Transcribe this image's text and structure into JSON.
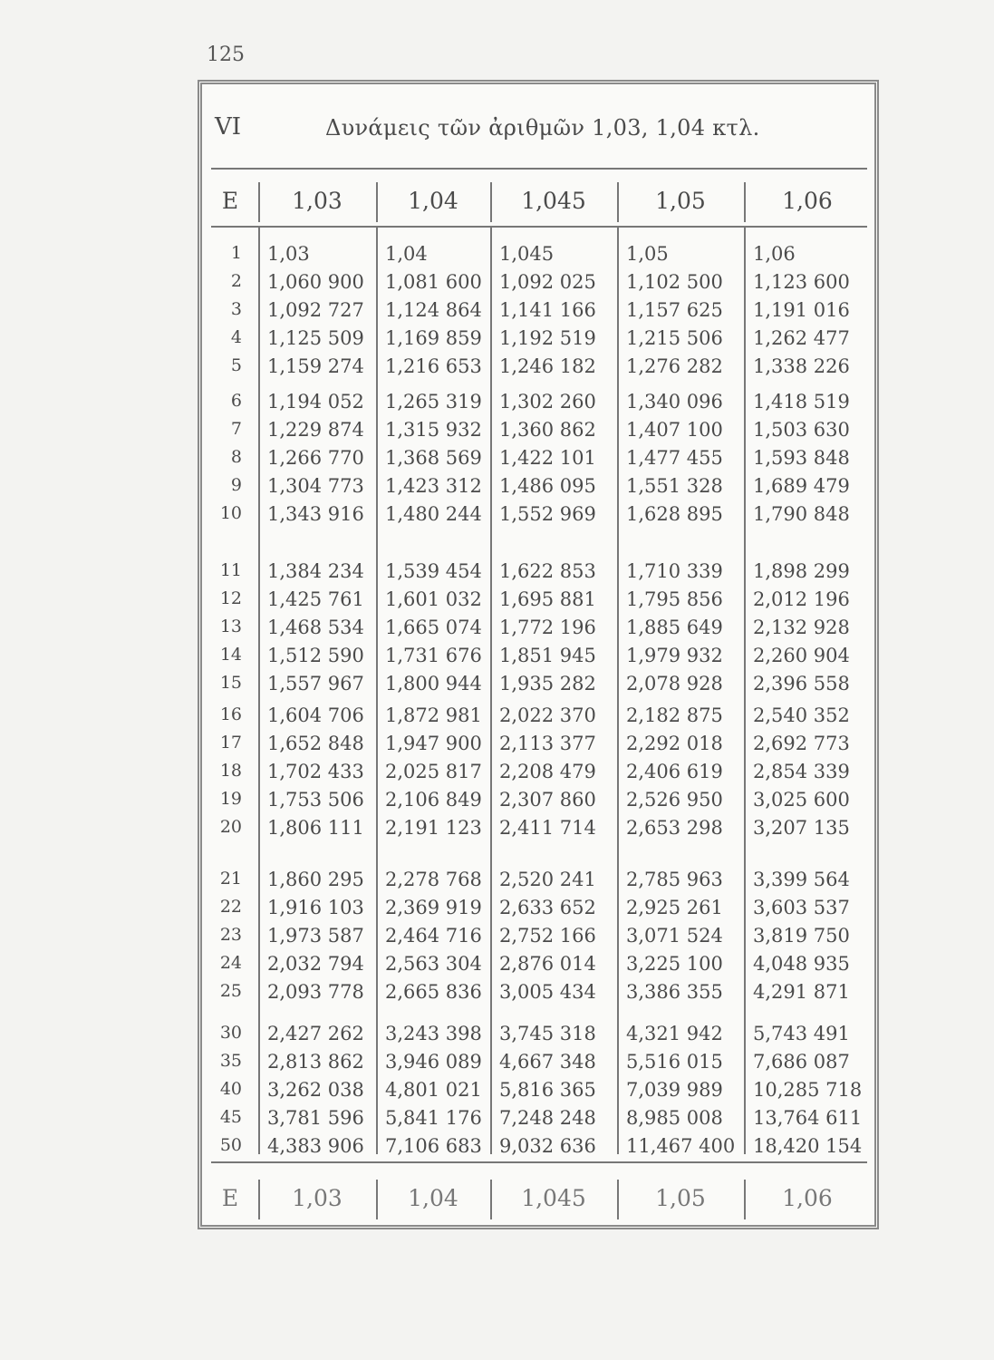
{
  "page_number": "125",
  "table": {
    "number": "VI",
    "title": "Δυνάμεις τῶν ἀριθμῶν 1,03, 1,04 κτλ.",
    "headers": [
      "E",
      "1,03",
      "1,04",
      "1,045",
      "1,05",
      "1,06"
    ],
    "footer": [
      "E",
      "1,03",
      "1,04",
      "1,045",
      "1,05",
      "1,06"
    ],
    "rows": [
      [
        "1",
        "1,03",
        "1,04",
        "1,045",
        "1,05",
        "1,06"
      ],
      [
        "2",
        "1,060 900",
        "1,081 600",
        "1,092 025",
        "1,102 500",
        "1,123 600"
      ],
      [
        "3",
        "1,092 727",
        "1,124 864",
        "1,141 166",
        "1,157 625",
        "1,191 016"
      ],
      [
        "4",
        "1,125 509",
        "1,169 859",
        "1,192 519",
        "1,215 506",
        "1,262 477"
      ],
      [
        "5",
        "1,159 274",
        "1,216 653",
        "1,246 182",
        "1,276 282",
        "1,338 226"
      ],
      [
        "6",
        "1,194 052",
        "1,265 319",
        "1,302 260",
        "1,340 096",
        "1,418 519"
      ],
      [
        "7",
        "1,229 874",
        "1,315 932",
        "1,360 862",
        "1,407 100",
        "1,503 630"
      ],
      [
        "8",
        "1,266 770",
        "1,368 569",
        "1,422 101",
        "1,477 455",
        "1,593 848"
      ],
      [
        "9",
        "1,304 773",
        "1,423 312",
        "1,486 095",
        "1,551 328",
        "1,689 479"
      ],
      [
        "10",
        "1,343 916",
        "1,480 244",
        "1,552 969",
        "1,628 895",
        "1,790 848"
      ],
      [
        "11",
        "1,384 234",
        "1,539 454",
        "1,622 853",
        "1,710 339",
        "1,898 299"
      ],
      [
        "12",
        "1,425 761",
        "1,601 032",
        "1,695 881",
        "1,795 856",
        "2,012 196"
      ],
      [
        "13",
        "1,468 534",
        "1,665 074",
        "1,772 196",
        "1,885 649",
        "2,132 928"
      ],
      [
        "14",
        "1,512 590",
        "1,731 676",
        "1,851 945",
        "1,979 932",
        "2,260 904"
      ],
      [
        "15",
        "1,557 967",
        "1,800 944",
        "1,935 282",
        "2,078 928",
        "2,396 558"
      ],
      [
        "16",
        "1,604 706",
        "1,872 981",
        "2,022 370",
        "2,182 875",
        "2,540 352"
      ],
      [
        "17",
        "1,652 848",
        "1,947 900",
        "2,113 377",
        "2,292 018",
        "2,692 773"
      ],
      [
        "18",
        "1,702 433",
        "2,025 817",
        "2,208 479",
        "2,406 619",
        "2,854 339"
      ],
      [
        "19",
        "1,753 506",
        "2,106 849",
        "2,307 860",
        "2,526 950",
        "3,025 600"
      ],
      [
        "20",
        "1,806 111",
        "2,191 123",
        "2,411 714",
        "2,653 298",
        "3,207 135"
      ],
      [
        "21",
        "1,860 295",
        "2,278 768",
        "2,520 241",
        "2,785 963",
        "3,399 564"
      ],
      [
        "22",
        "1,916 103",
        "2,369 919",
        "2,633 652",
        "2,925 261",
        "3,603 537"
      ],
      [
        "23",
        "1,973 587",
        "2,464 716",
        "2,752 166",
        "3,071 524",
        "3,819 750"
      ],
      [
        "24",
        "2,032 794",
        "2,563 304",
        "2,876 014",
        "3,225 100",
        "4,048 935"
      ],
      [
        "25",
        "2,093 778",
        "2,665 836",
        "3,005 434",
        "3,386 355",
        "4,291 871"
      ],
      [
        "30",
        "2,427 262",
        "3,243 398",
        "3,745 318",
        "4,321 942",
        "5,743 491"
      ],
      [
        "35",
        "2,813 862",
        "3,946 089",
        "4,667 348",
        "5,516 015",
        "7,686 087"
      ],
      [
        "40",
        "3,262 038",
        "4,801 021",
        "5,816 365",
        "7,039 989",
        "10,285 718"
      ],
      [
        "45",
        "3,781 596",
        "5,841 176",
        "7,248 248",
        "8,985 008",
        "13,764 611"
      ],
      [
        "50",
        "4,383 906",
        "7,106 683",
        "9,032 636",
        "11,467 400",
        "18,420 154"
      ]
    ]
  }
}
